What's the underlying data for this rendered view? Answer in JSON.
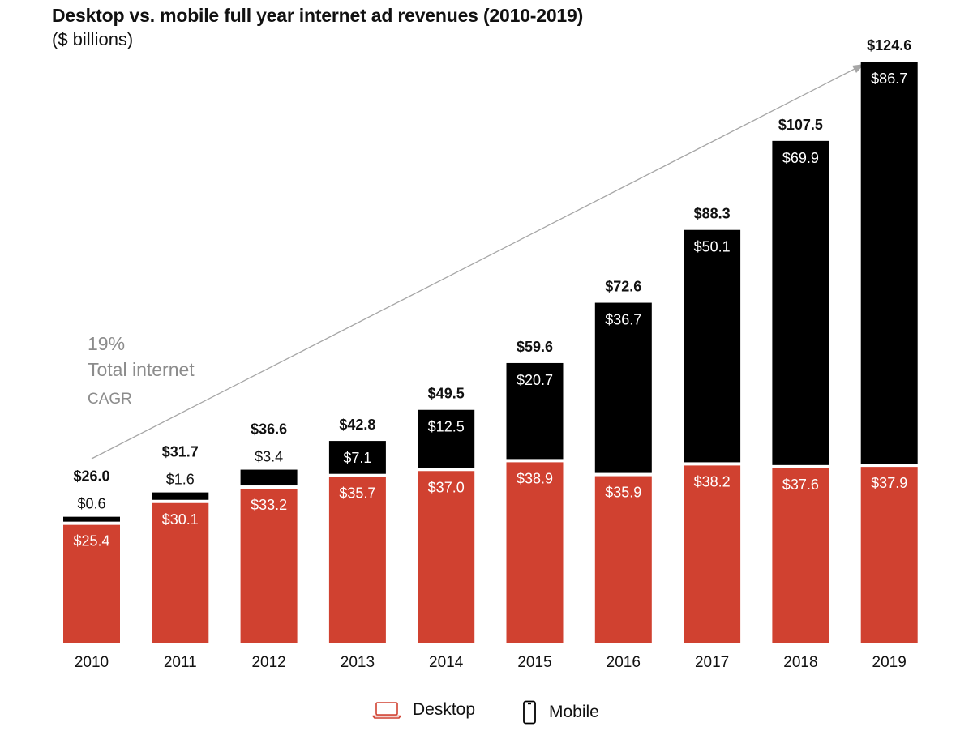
{
  "title": "Desktop vs. mobile full year internet ad revenues (2010-2019)",
  "subtitle": "($ billions)",
  "annotation": {
    "pct": "19%",
    "label": "Total internet",
    "unit": "CAGR"
  },
  "colors": {
    "desktop": "#d04130",
    "mobile": "#000000",
    "arrow": "#a6a6a6",
    "annotation": "#8c8c8c"
  },
  "legend": [
    {
      "name": "Desktop",
      "icon": "laptop-icon"
    },
    {
      "name": "Mobile",
      "icon": "smartphone-icon"
    }
  ],
  "chart_data": {
    "type": "bar",
    "stacked": true,
    "categories": [
      "2010",
      "2011",
      "2012",
      "2013",
      "2014",
      "2015",
      "2016",
      "2017",
      "2018",
      "2019"
    ],
    "series": [
      {
        "name": "Desktop",
        "values": [
          25.4,
          30.1,
          33.2,
          35.7,
          37.0,
          38.9,
          35.9,
          38.2,
          37.6,
          37.9
        ],
        "labels": [
          "$25.4",
          "$30.1",
          "$33.2",
          "$35.7",
          "$37.0",
          "$38.9",
          "$35.9",
          "$38.2",
          "$37.6",
          "$37.9"
        ]
      },
      {
        "name": "Mobile",
        "values": [
          0.6,
          1.6,
          3.4,
          7.1,
          12.5,
          20.7,
          36.7,
          50.1,
          69.9,
          86.7
        ],
        "labels": [
          "$0.6",
          "$1.6",
          "$3.4",
          "$7.1",
          "$12.5",
          "$20.7",
          "$36.7",
          "$50.1",
          "$69.9",
          "$86.7"
        ]
      }
    ],
    "totals": [
      26.0,
      31.7,
      36.6,
      42.8,
      49.5,
      59.6,
      72.6,
      88.3,
      107.5,
      124.6
    ],
    "total_labels": [
      "$26.0",
      "$31.7",
      "$36.6",
      "$42.8",
      "$49.5",
      "$59.6",
      "$72.6",
      "$88.3",
      "$107.5",
      "$124.6"
    ],
    "ylim": [
      0,
      124.6
    ],
    "grid": false,
    "legend_position": "bottom-center"
  }
}
